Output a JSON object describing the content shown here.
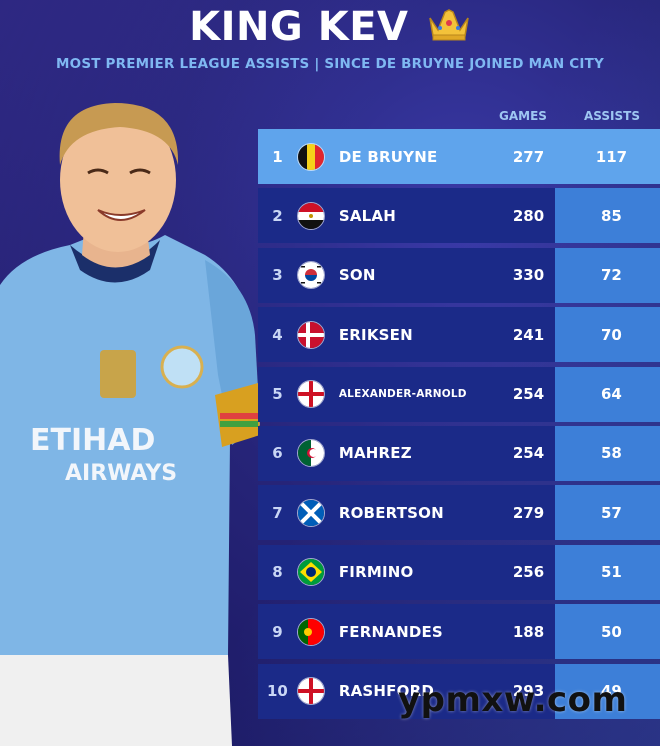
{
  "header": {
    "title": "KING KEV",
    "subtitle": "MOST PREMIER LEAGUE ASSISTS | SINCE DE BRUYNE JOINED MAN CITY"
  },
  "columns": {
    "games": "GAMES",
    "assists": "ASSISTS"
  },
  "players": [
    {
      "rank": "1",
      "name": "DE BRUYNE",
      "games": "277",
      "assists": "117",
      "flag": "belgium-flag-icon"
    },
    {
      "rank": "2",
      "name": "SALAH",
      "games": "280",
      "assists": "85",
      "flag": "egypt-flag-icon"
    },
    {
      "rank": "3",
      "name": "SON",
      "games": "330",
      "assists": "72",
      "flag": "south-korea-flag-icon"
    },
    {
      "rank": "4",
      "name": "ERIKSEN",
      "games": "241",
      "assists": "70",
      "flag": "denmark-flag-icon"
    },
    {
      "rank": "5",
      "name": "ALEXANDER-ARNOLD",
      "games": "254",
      "assists": "64",
      "flag": "england-flag-icon"
    },
    {
      "rank": "6",
      "name": "MAHREZ",
      "games": "254",
      "assists": "58",
      "flag": "algeria-flag-icon"
    },
    {
      "rank": "7",
      "name": "ROBERTSON",
      "games": "279",
      "assists": "57",
      "flag": "scotland-flag-icon"
    },
    {
      "rank": "8",
      "name": "FIRMINO",
      "games": "256",
      "assists": "51",
      "flag": "brazil-flag-icon"
    },
    {
      "rank": "9",
      "name": "FERNANDES",
      "games": "188",
      "assists": "50",
      "flag": "portugal-flag-icon"
    },
    {
      "rank": "10",
      "name": "RASHFORD",
      "games": "293",
      "assists": "49",
      "flag": "england-flag-icon"
    }
  ],
  "watermark": "ypmxw.com",
  "colors": {
    "background": "#262478",
    "leader_row": "#5fa4ec",
    "row": "#1b2a88",
    "assist_column": "#3d7fd8",
    "subtitle": "#7fb8f2"
  }
}
